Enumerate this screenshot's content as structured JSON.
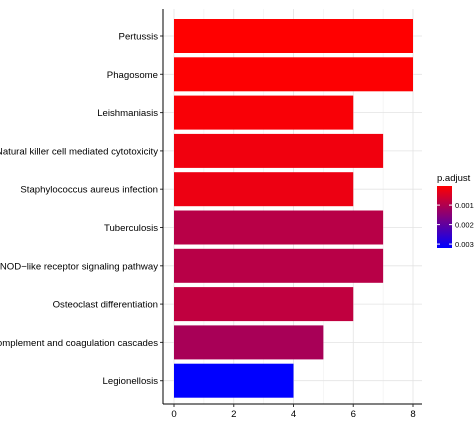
{
  "chart_data": {
    "type": "bar",
    "orientation": "horizontal",
    "categories": [
      "Pertussis",
      "Phagosome",
      "Leishmaniasis",
      "Natural killer cell mediated cytotoxicity",
      "Staphylococcus aureus infection",
      "Tuberculosis",
      "NOD−like receptor signaling pathway",
      "Osteoclast differentiation",
      "Complement and coagulation cascades",
      "Legionellosis"
    ],
    "values": [
      8,
      8,
      6,
      7,
      6,
      7,
      7,
      6,
      5,
      4
    ],
    "p_adjust": [
      2e-05,
      4e-05,
      0.0001,
      0.0002,
      0.00025,
      0.0009,
      0.0009,
      0.0008,
      0.0011,
      0.0032
    ],
    "xlim": [
      0,
      8.3
    ],
    "x_ticks": [
      0,
      2,
      4,
      6,
      8
    ],
    "x_tick_labels": [
      "0",
      "2",
      "4",
      "6",
      "8"
    ],
    "grid": true,
    "legend": {
      "title": "p.adjust",
      "position": "right",
      "ticks": [
        0.001,
        0.002,
        0.003
      ],
      "tick_labels": [
        "0.001",
        "0.002",
        "0.003"
      ],
      "range": [
        2e-05,
        0.0032
      ],
      "color_low": "#ff0000",
      "color_high": "#0000ff"
    }
  }
}
